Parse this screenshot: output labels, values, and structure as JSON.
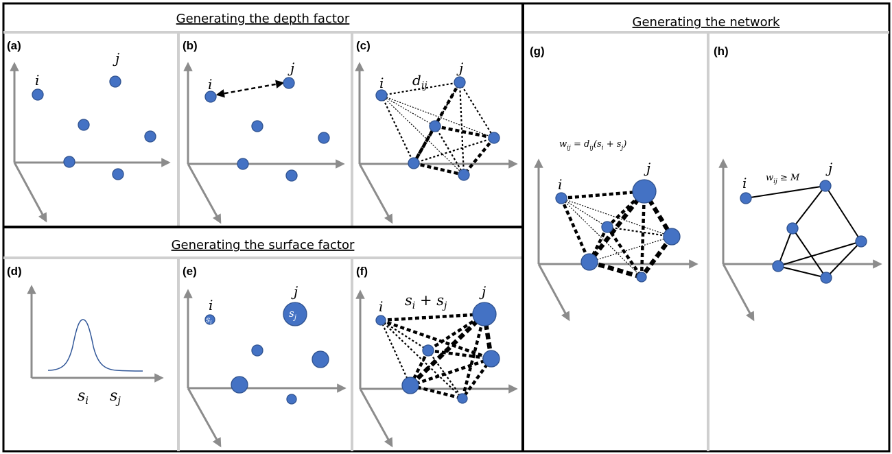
{
  "sections": {
    "depth": "Generating the depth factor",
    "network": "Generating the network",
    "surface": "Generating the surface factor"
  },
  "panels": {
    "a": "(a)",
    "b": "(b)",
    "c": "(c)",
    "d": "(d)",
    "e": "(e)",
    "f": "(f)",
    "g": "(g)",
    "h": "(h)"
  },
  "labels": {
    "i": "i",
    "j": "j",
    "d_ij": "dij",
    "s_i": "si",
    "s_j": "sj",
    "sum": "si + sj",
    "weight_formula": "wij = dij(si + sj)",
    "threshold": "wij ≥ M"
  },
  "colors": {
    "node_fill": "#4472c4",
    "node_stroke": "#2f528f",
    "axis": "#8c8c8c",
    "separator": "#cfcfcf"
  }
}
